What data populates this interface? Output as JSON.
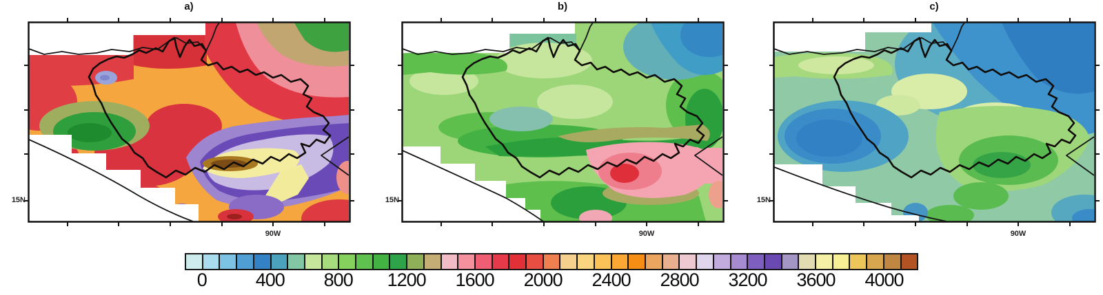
{
  "chart_data": {
    "type": "heatmap",
    "subtype": "three filled-contour map panels over the same river-basin region, sharing one discrete colorbar",
    "panels": [
      {
        "label": "a)",
        "lat_label": "15N",
        "lon_label": "90W",
        "summary": "high values: mostly 1600-2600 (orange/red); local green minimum ~900-1300 west-center; purple/pale-yellow maximum ~3000-3900 in the southeast with a small >4000 core"
      },
      {
        "label": "b)",
        "lat_label": "15N",
        "lon_label": "90W",
        "summary": "moderate values: mostly 600-1200 (greens); 0-400 (blue/teal) northeast corner; pink/red maximum ~1400-1800 in the southeast"
      },
      {
        "label": "c)",
        "lat_label": "15N",
        "lon_label": "90W",
        "summary": "low values: mostly 100-700 (blues/teals); <300 (blue) northeast and west-center; 700-1100 (greens) center-south and southeast"
      }
    ],
    "colorbar": {
      "tick_labels": [
        "0",
        "400",
        "800",
        "1200",
        "1600",
        "2000",
        "2400",
        "2800",
        "3200",
        "3600",
        "4000"
      ],
      "tick_values": [
        0,
        400,
        800,
        1200,
        1600,
        2000,
        2400,
        2800,
        3200,
        3600,
        4000
      ],
      "cell_width_value": 100,
      "range": [
        -100,
        4200
      ],
      "cell_colors": [
        "#cdeceb",
        "#a9dcec",
        "#7cc2e2",
        "#4f9fd5",
        "#3382c6",
        "#4aa2bc",
        "#82c6a6",
        "#c6e69c",
        "#a6dc7e",
        "#86d05e",
        "#5fc24e",
        "#42b243",
        "#2fa349",
        "#8fb058",
        "#c4ae76",
        "#f2bcc6",
        "#f4919c",
        "#ef5e72",
        "#e63a4a",
        "#e13038",
        "#e84e42",
        "#f08050",
        "#f6d08d",
        "#f8d57e",
        "#fbc258",
        "#faa733",
        "#f68d15",
        "#eca55e",
        "#e9b090",
        "#efc9d1",
        "#dfd5ec",
        "#c2abdd",
        "#a68bd1",
        "#7e5fc0",
        "#6a4ab2",
        "#a395c4",
        "#e3dcb2",
        "#f4f0a6",
        "#f7f094",
        "#edc659",
        "#d8a64e",
        "#c08742",
        "#b35222"
      ]
    }
  }
}
